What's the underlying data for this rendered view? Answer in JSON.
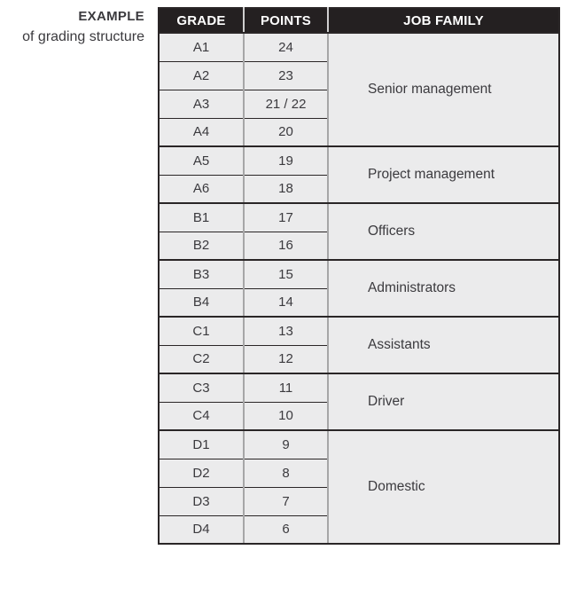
{
  "label": {
    "line1": "EXAMPLE",
    "line2": "of grading structure"
  },
  "table": {
    "headers": [
      "GRADE",
      "POINTS",
      "JOB FAMILY"
    ],
    "groups": [
      {
        "job_family": "Senior management",
        "rows": [
          {
            "grade": "A1",
            "points": "24"
          },
          {
            "grade": "A2",
            "points": "23"
          },
          {
            "grade": "A3",
            "points": "21 / 22"
          },
          {
            "grade": "A4",
            "points": "20"
          }
        ]
      },
      {
        "job_family": "Project management",
        "rows": [
          {
            "grade": "A5",
            "points": "19"
          },
          {
            "grade": "A6",
            "points": "18"
          }
        ]
      },
      {
        "job_family": "Officers",
        "rows": [
          {
            "grade": "B1",
            "points": "17"
          },
          {
            "grade": "B2",
            "points": "16"
          }
        ]
      },
      {
        "job_family": "Administrators",
        "rows": [
          {
            "grade": "B3",
            "points": "15"
          },
          {
            "grade": "B4",
            "points": "14"
          }
        ]
      },
      {
        "job_family": "Assistants",
        "rows": [
          {
            "grade": "C1",
            "points": "13"
          },
          {
            "grade": "C2",
            "points": "12"
          }
        ]
      },
      {
        "job_family": "Driver",
        "rows": [
          {
            "grade": "C3",
            "points": "11"
          },
          {
            "grade": "C4",
            "points": "10"
          }
        ]
      },
      {
        "job_family": "Domestic",
        "rows": [
          {
            "grade": "D1",
            "points": "9"
          },
          {
            "grade": "D2",
            "points": "8"
          },
          {
            "grade": "D3",
            "points": "7"
          },
          {
            "grade": "D4",
            "points": "6"
          }
        ]
      }
    ]
  },
  "colors": {
    "header_bg": "#242021",
    "header_text": "#ffffff",
    "cell_bg": "#ebebec",
    "text": "#3b3a3e",
    "black_line": "#2a2627",
    "gray_divider": "#a6a6a7",
    "header_divider": "#cfcfcf"
  }
}
